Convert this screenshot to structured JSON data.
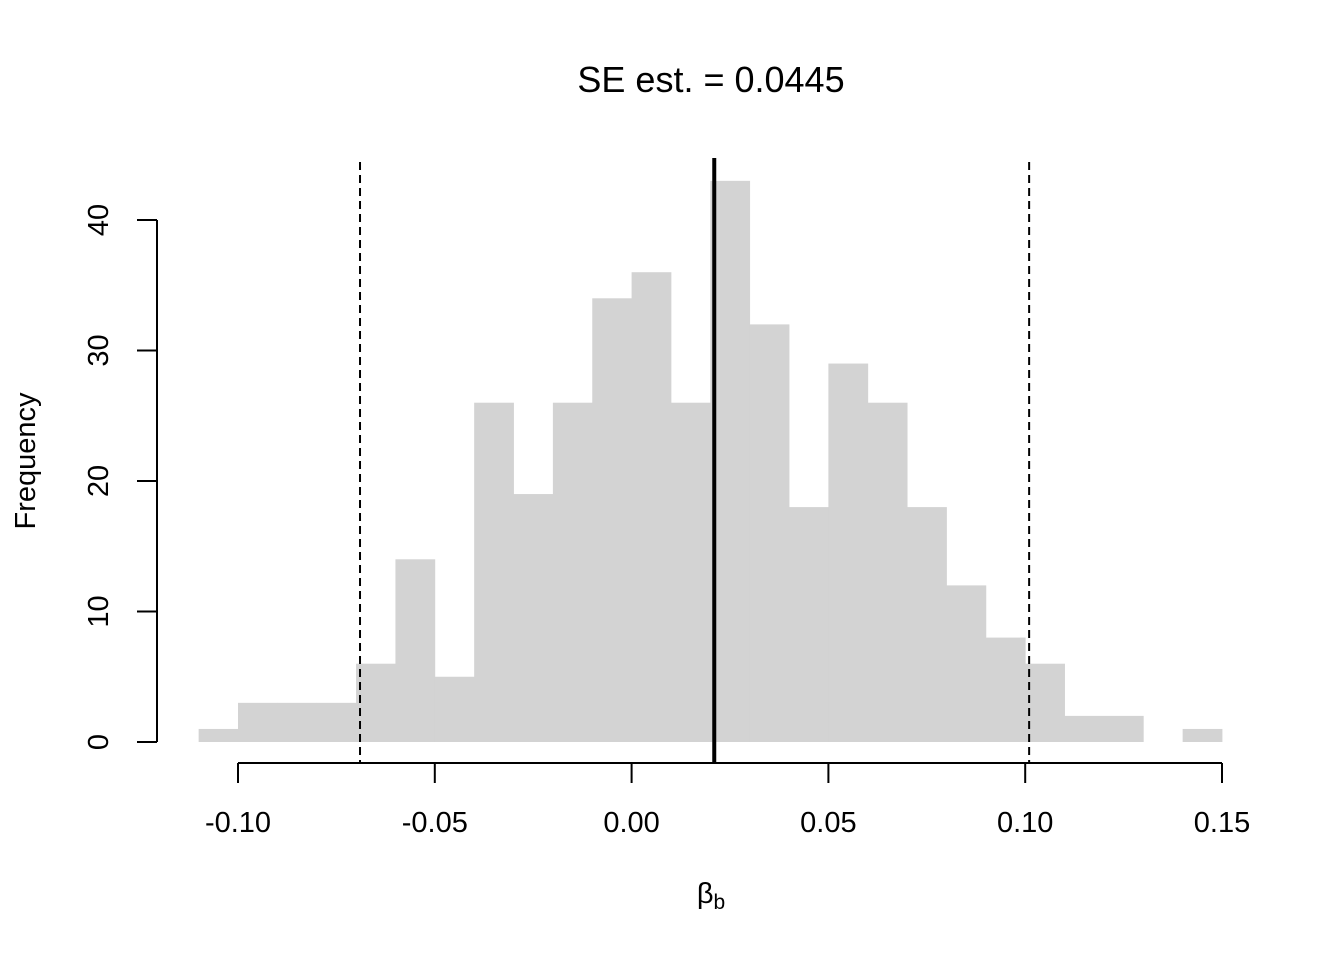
{
  "chart_data": {
    "type": "bar",
    "title": "SE est. = 0.0445",
    "ylabel": "Frequency",
    "xlabel": {
      "main": "β",
      "sub": "b"
    },
    "bins": [
      {
        "x0": -0.11,
        "x1": -0.1,
        "count": 1
      },
      {
        "x0": -0.1,
        "x1": -0.09,
        "count": 3
      },
      {
        "x0": -0.09,
        "x1": -0.08,
        "count": 3
      },
      {
        "x0": -0.08,
        "x1": -0.07,
        "count": 3
      },
      {
        "x0": -0.07,
        "x1": -0.06,
        "count": 6
      },
      {
        "x0": -0.06,
        "x1": -0.05,
        "count": 14
      },
      {
        "x0": -0.05,
        "x1": -0.04,
        "count": 5
      },
      {
        "x0": -0.04,
        "x1": -0.03,
        "count": 26
      },
      {
        "x0": -0.03,
        "x1": -0.02,
        "count": 19
      },
      {
        "x0": -0.02,
        "x1": -0.01,
        "count": 26
      },
      {
        "x0": -0.01,
        "x1": 0.0,
        "count": 34
      },
      {
        "x0": 0.0,
        "x1": 0.01,
        "count": 36
      },
      {
        "x0": 0.01,
        "x1": 0.02,
        "count": 26
      },
      {
        "x0": 0.02,
        "x1": 0.03,
        "count": 43
      },
      {
        "x0": 0.03,
        "x1": 0.04,
        "count": 32
      },
      {
        "x0": 0.04,
        "x1": 0.05,
        "count": 18
      },
      {
        "x0": 0.05,
        "x1": 0.06,
        "count": 29
      },
      {
        "x0": 0.06,
        "x1": 0.07,
        "count": 26
      },
      {
        "x0": 0.07,
        "x1": 0.08,
        "count": 18
      },
      {
        "x0": 0.08,
        "x1": 0.09,
        "count": 12
      },
      {
        "x0": 0.09,
        "x1": 0.1,
        "count": 8
      },
      {
        "x0": 0.1,
        "x1": 0.11,
        "count": 6
      },
      {
        "x0": 0.11,
        "x1": 0.12,
        "count": 2
      },
      {
        "x0": 0.12,
        "x1": 0.13,
        "count": 2
      },
      {
        "x0": 0.13,
        "x1": 0.14,
        "count": 0
      },
      {
        "x0": 0.14,
        "x1": 0.15,
        "count": 1
      }
    ],
    "xticks": [
      -0.1,
      -0.05,
      0.0,
      0.05,
      0.1,
      0.15
    ],
    "xtick_labels": [
      "-0.10",
      "-0.05",
      "0.00",
      "0.05",
      "0.10",
      "0.15"
    ],
    "yticks": [
      0,
      10,
      20,
      30,
      40
    ],
    "ytick_labels": [
      "0",
      "10",
      "20",
      "30",
      "40"
    ],
    "xlim": [
      -0.11,
      0.15
    ],
    "ylim": [
      0,
      43
    ],
    "estimate_line": 0.021,
    "ci_lines": [
      -0.069,
      0.101
    ],
    "colors": {
      "bar": "#d3d3d3",
      "lines": "#000000"
    },
    "grid": false,
    "legend": "none"
  }
}
